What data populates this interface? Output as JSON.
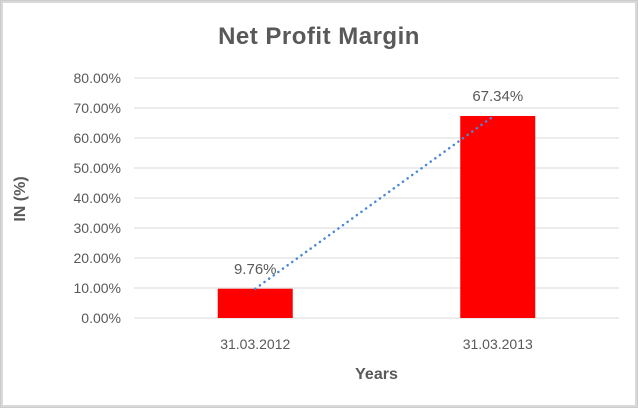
{
  "frame": {
    "background_color": "#ffffff",
    "border_color": "#d9d9d9"
  },
  "chart_data": {
    "type": "bar",
    "title": "Net Profit Margin",
    "xlabel": "Years",
    "ylabel": "IN (%)",
    "categories": [
      "31.03.2012",
      "31.03.2013"
    ],
    "values": [
      9.76,
      67.34
    ],
    "data_labels": [
      "9.76%",
      "67.34%"
    ],
    "yticks": [
      {
        "value": 0,
        "label": "0.00%"
      },
      {
        "value": 10,
        "label": "10.00%"
      },
      {
        "value": 20,
        "label": "20.00%"
      },
      {
        "value": 30,
        "label": "30.00%"
      },
      {
        "value": 40,
        "label": "40.00%"
      },
      {
        "value": 50,
        "label": "50.00%"
      },
      {
        "value": 60,
        "label": "60.00%"
      },
      {
        "value": 70,
        "label": "70.00%"
      },
      {
        "value": 80,
        "label": "80.00%"
      }
    ],
    "ylim": [
      0,
      80
    ],
    "grid": true,
    "legend": "none",
    "bar_color": "#ff0000",
    "gridline_color": "#d9d9d9",
    "text_color": "#595959",
    "trendline": {
      "style": "dotted",
      "color": "#4a89d8",
      "from_value": 9.76,
      "to_value": 67.34
    }
  }
}
